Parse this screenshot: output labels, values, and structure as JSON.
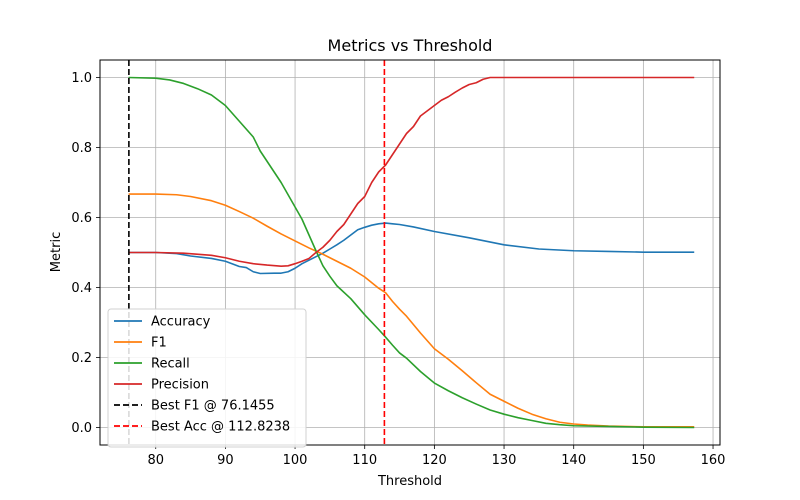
{
  "chart_data": {
    "type": "line",
    "title": "Metrics vs Threshold",
    "xlabel": "Threshold",
    "ylabel": "Metric",
    "xlim": [
      72.0,
      161.0
    ],
    "ylim": [
      -0.05,
      1.05
    ],
    "xticks": [
      80,
      90,
      100,
      110,
      120,
      130,
      140,
      150,
      160
    ],
    "yticks": [
      0.0,
      0.2,
      0.4,
      0.6,
      0.8,
      1.0
    ],
    "xtick_labels": [
      "80",
      "90",
      "100",
      "110",
      "120",
      "130",
      "140",
      "150",
      "160"
    ],
    "ytick_labels": [
      "0.0",
      "0.2",
      "0.4",
      "0.6",
      "0.8",
      "1.0"
    ],
    "grid": true,
    "legend_position": "lower-left",
    "series": [
      {
        "name": "Accuracy",
        "color": "#1f77b4",
        "points": [
          [
            76.1,
            0.5
          ],
          [
            80,
            0.5
          ],
          [
            83,
            0.497
          ],
          [
            85,
            0.49
          ],
          [
            88,
            0.483
          ],
          [
            90,
            0.475
          ],
          [
            92,
            0.46
          ],
          [
            93,
            0.457
          ],
          [
            94,
            0.445
          ],
          [
            95,
            0.44
          ],
          [
            97,
            0.441
          ],
          [
            98,
            0.441
          ],
          [
            99,
            0.445
          ],
          [
            100,
            0.455
          ],
          [
            101,
            0.468
          ],
          [
            102,
            0.478
          ],
          [
            103,
            0.488
          ],
          [
            104,
            0.498
          ],
          [
            105,
            0.51
          ],
          [
            106,
            0.522
          ],
          [
            107,
            0.535
          ],
          [
            108,
            0.55
          ],
          [
            109,
            0.565
          ],
          [
            110,
            0.572
          ],
          [
            111,
            0.578
          ],
          [
            112,
            0.582
          ],
          [
            113,
            0.584
          ],
          [
            114,
            0.582
          ],
          [
            115,
            0.58
          ],
          [
            117,
            0.573
          ],
          [
            120,
            0.56
          ],
          [
            125,
            0.542
          ],
          [
            130,
            0.522
          ],
          [
            135,
            0.51
          ],
          [
            140,
            0.505
          ],
          [
            145,
            0.503
          ],
          [
            150,
            0.501
          ],
          [
            157.3,
            0.501
          ]
        ]
      },
      {
        "name": "F1",
        "color": "#ff7f0e",
        "points": [
          [
            76.1,
            0.667
          ],
          [
            80,
            0.667
          ],
          [
            83,
            0.665
          ],
          [
            85,
            0.66
          ],
          [
            88,
            0.648
          ],
          [
            90,
            0.635
          ],
          [
            92,
            0.617
          ],
          [
            94,
            0.598
          ],
          [
            96,
            0.575
          ],
          [
            98,
            0.553
          ],
          [
            100,
            0.533
          ],
          [
            102,
            0.513
          ],
          [
            104,
            0.495
          ],
          [
            106,
            0.475
          ],
          [
            108,
            0.455
          ],
          [
            110,
            0.43
          ],
          [
            112,
            0.398
          ],
          [
            113,
            0.385
          ],
          [
            114,
            0.36
          ],
          [
            115,
            0.338
          ],
          [
            116,
            0.318
          ],
          [
            118,
            0.27
          ],
          [
            120,
            0.225
          ],
          [
            122,
            0.195
          ],
          [
            124,
            0.162
          ],
          [
            126,
            0.128
          ],
          [
            128,
            0.095
          ],
          [
            130,
            0.075
          ],
          [
            132,
            0.055
          ],
          [
            134,
            0.038
          ],
          [
            136,
            0.025
          ],
          [
            138,
            0.015
          ],
          [
            140,
            0.01
          ],
          [
            142,
            0.007
          ],
          [
            145,
            0.004
          ],
          [
            150,
            0.002
          ],
          [
            157.3,
            0.002
          ]
        ]
      },
      {
        "name": "Recall",
        "color": "#2ca02c",
        "points": [
          [
            76.1,
            1.0
          ],
          [
            80,
            0.998
          ],
          [
            82,
            0.993
          ],
          [
            84,
            0.983
          ],
          [
            86,
            0.968
          ],
          [
            88,
            0.95
          ],
          [
            90,
            0.92
          ],
          [
            92,
            0.875
          ],
          [
            94,
            0.83
          ],
          [
            95,
            0.79
          ],
          [
            97,
            0.73
          ],
          [
            98,
            0.7
          ],
          [
            100,
            0.63
          ],
          [
            101,
            0.595
          ],
          [
            102,
            0.55
          ],
          [
            103,
            0.505
          ],
          [
            104,
            0.462
          ],
          [
            105,
            0.432
          ],
          [
            106,
            0.405
          ],
          [
            108,
            0.368
          ],
          [
            110,
            0.322
          ],
          [
            112,
            0.28
          ],
          [
            113,
            0.258
          ],
          [
            114,
            0.235
          ],
          [
            115,
            0.213
          ],
          [
            116,
            0.198
          ],
          [
            118,
            0.16
          ],
          [
            120,
            0.127
          ],
          [
            122,
            0.105
          ],
          [
            124,
            0.085
          ],
          [
            126,
            0.067
          ],
          [
            128,
            0.05
          ],
          [
            130,
            0.038
          ],
          [
            132,
            0.028
          ],
          [
            134,
            0.02
          ],
          [
            136,
            0.012
          ],
          [
            138,
            0.008
          ],
          [
            140,
            0.005
          ],
          [
            145,
            0.003
          ],
          [
            150,
            0.001
          ],
          [
            157.3,
            0.0
          ]
        ]
      },
      {
        "name": "Precision",
        "color": "#d62728",
        "points": [
          [
            76.1,
            0.5
          ],
          [
            80,
            0.5
          ],
          [
            84,
            0.498
          ],
          [
            88,
            0.492
          ],
          [
            90,
            0.485
          ],
          [
            92,
            0.475
          ],
          [
            94,
            0.468
          ],
          [
            96,
            0.464
          ],
          [
            98,
            0.461
          ],
          [
            99,
            0.462
          ],
          [
            100,
            0.468
          ],
          [
            101,
            0.475
          ],
          [
            102,
            0.483
          ],
          [
            103,
            0.5
          ],
          [
            104,
            0.515
          ],
          [
            105,
            0.535
          ],
          [
            106,
            0.56
          ],
          [
            107,
            0.58
          ],
          [
            108,
            0.61
          ],
          [
            109,
            0.64
          ],
          [
            110,
            0.66
          ],
          [
            111,
            0.7
          ],
          [
            112,
            0.73
          ],
          [
            113,
            0.75
          ],
          [
            114,
            0.78
          ],
          [
            115,
            0.81
          ],
          [
            116,
            0.84
          ],
          [
            117,
            0.86
          ],
          [
            118,
            0.89
          ],
          [
            119,
            0.905
          ],
          [
            120,
            0.92
          ],
          [
            121,
            0.935
          ],
          [
            122,
            0.945
          ],
          [
            123,
            0.958
          ],
          [
            124,
            0.97
          ],
          [
            125,
            0.98
          ],
          [
            126,
            0.985
          ],
          [
            127,
            0.995
          ],
          [
            128,
            1.0
          ],
          [
            135,
            1.0
          ],
          [
            140,
            1.0
          ],
          [
            150,
            1.0
          ],
          [
            157.3,
            1.0
          ]
        ]
      }
    ],
    "vlines": [
      {
        "name": "Best F1 @ 76.1455",
        "x": 76.1455,
        "color": "#000000",
        "style": "dashed"
      },
      {
        "name": "Best Acc @ 112.8238",
        "x": 112.8238,
        "color": "#ff0000",
        "style": "dashed"
      }
    ]
  }
}
